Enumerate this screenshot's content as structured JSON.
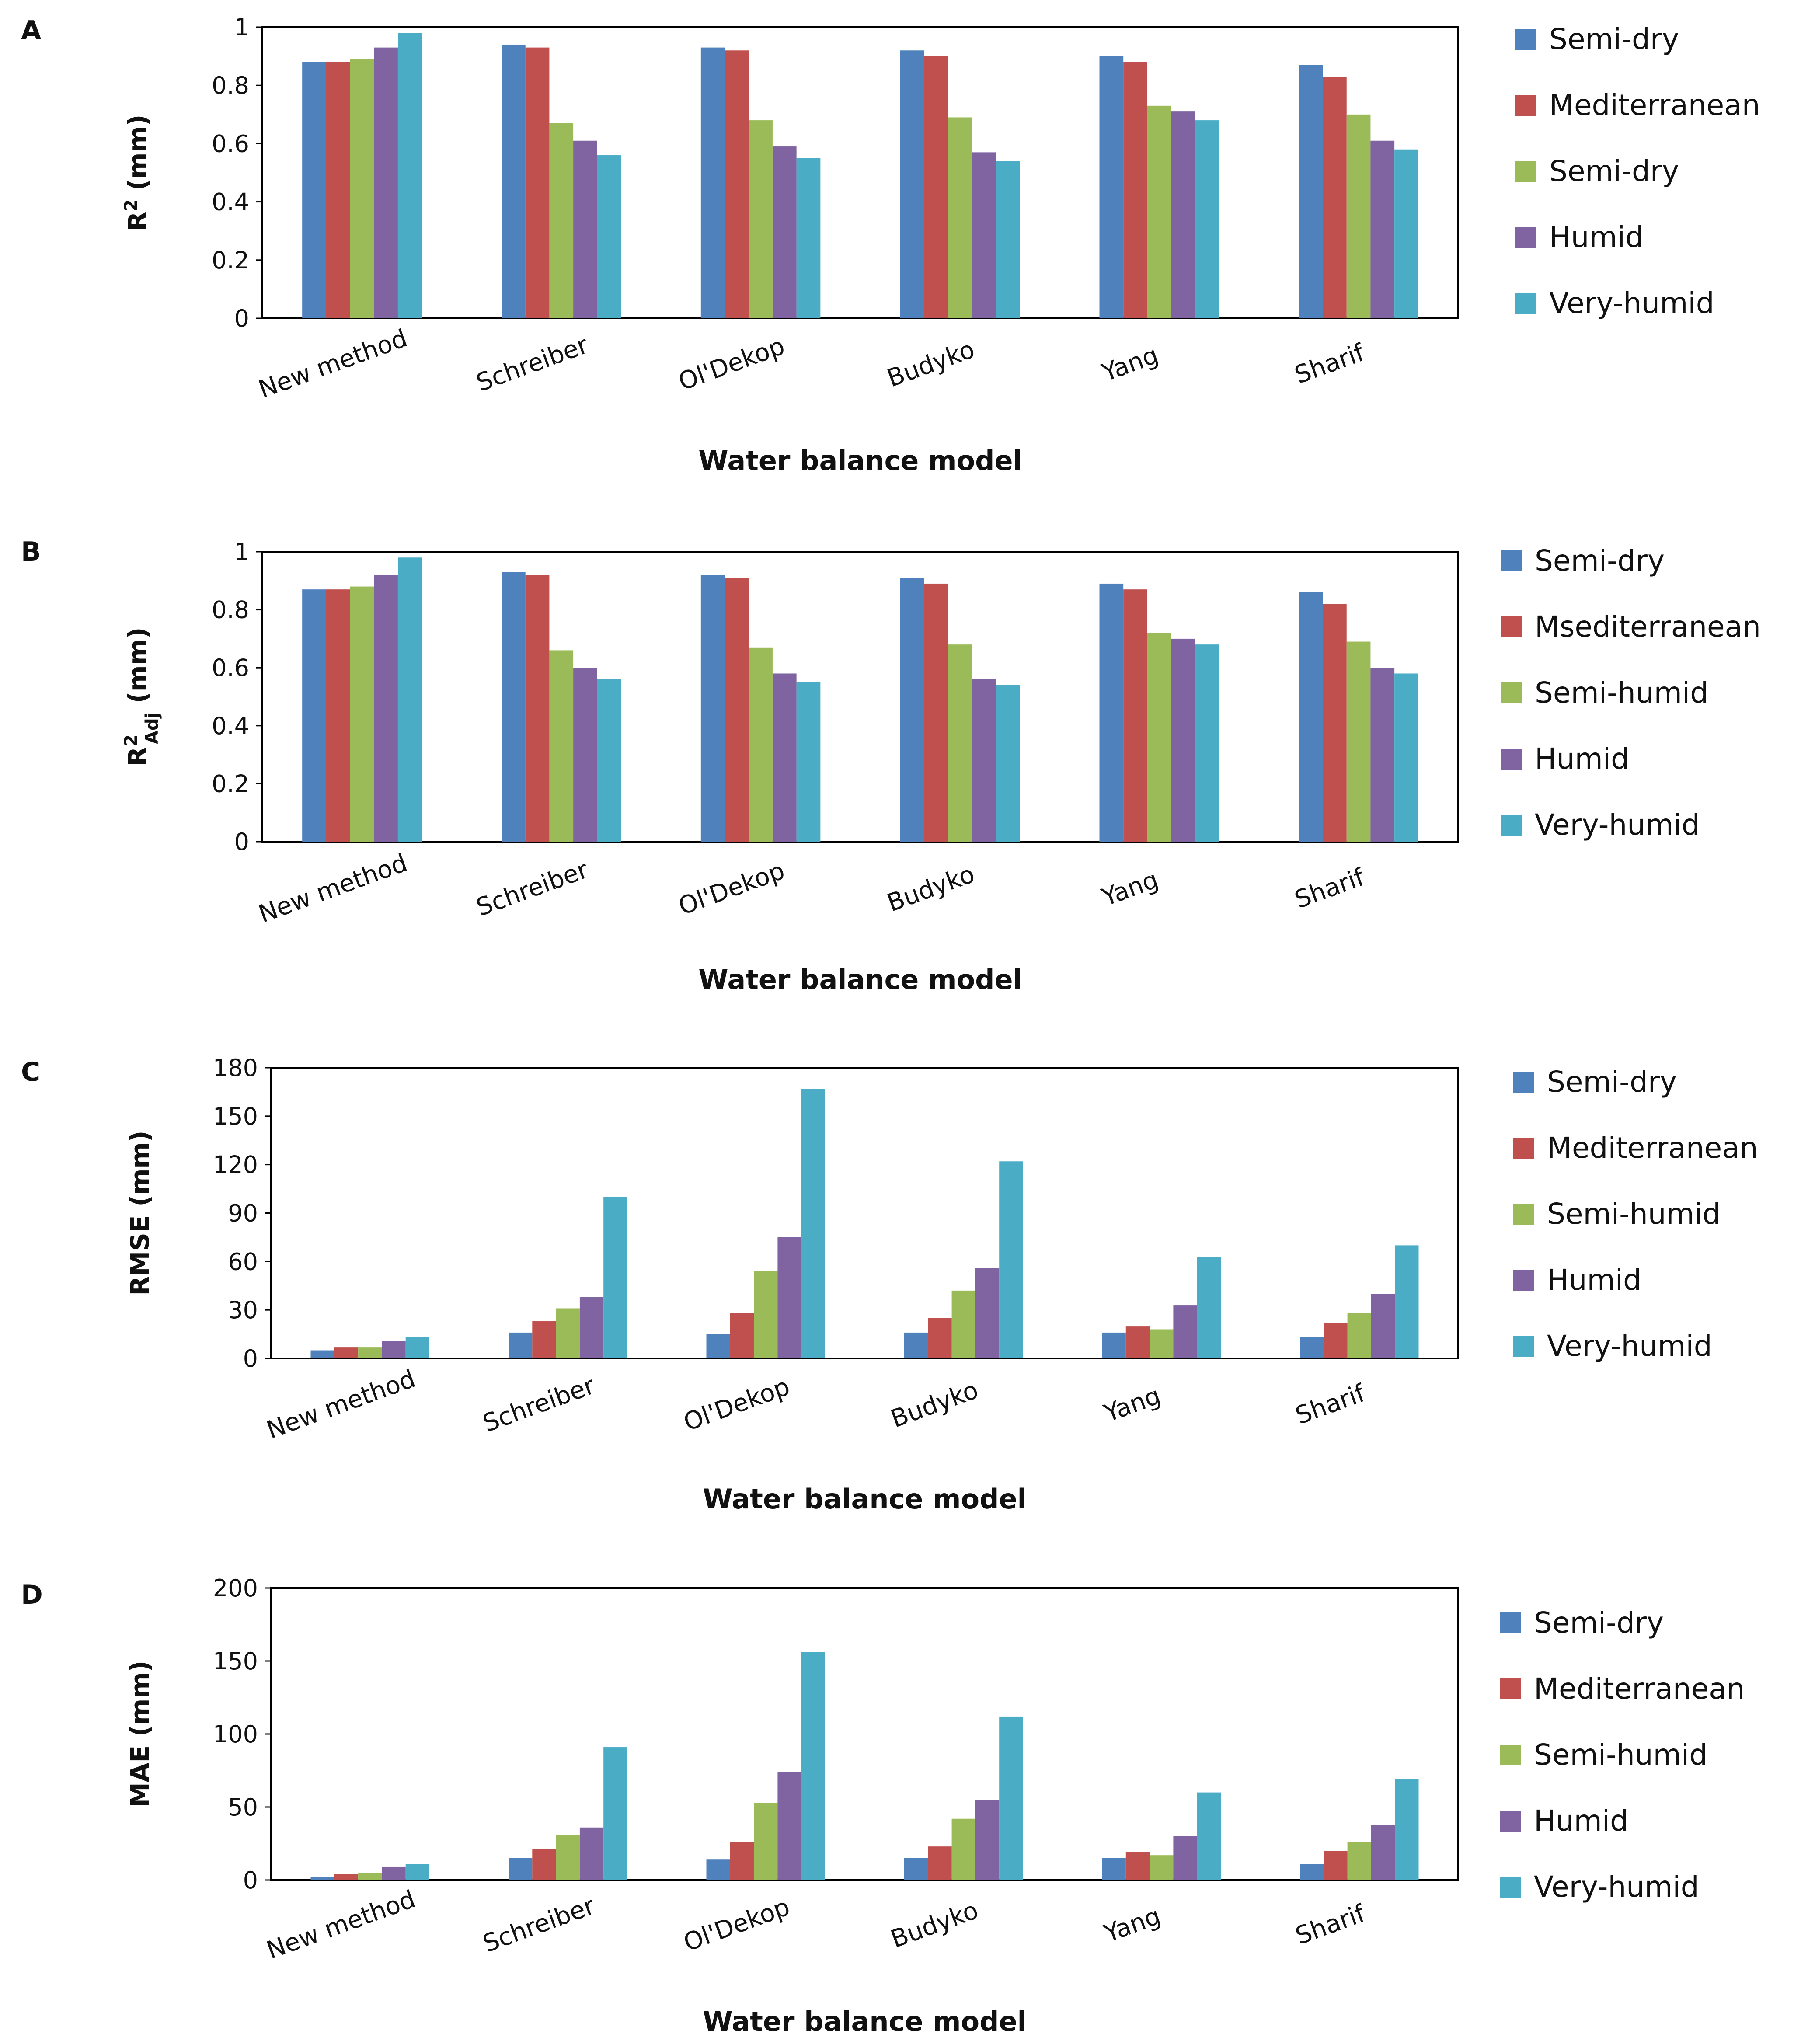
{
  "chart_data": [
    {
      "panel": "A",
      "type": "bar",
      "title": "",
      "xlabel": "Water balance model",
      "ylabel": "R",
      "ylabel_sup": "2",
      "ylabel_sub": "",
      "ylabel_unit": " (mm)",
      "ylim": [
        0,
        1
      ],
      "yticks": [
        "0",
        "0.2",
        "0.4",
        "0.6",
        "0.8",
        "1"
      ],
      "ytick_values": [
        0,
        0.2,
        0.4,
        0.6,
        0.8,
        1
      ],
      "categories": [
        "New method",
        "Schreiber",
        "Ol'Dekop",
        "Budyko",
        "Yang",
        "Sharif"
      ],
      "legend_position": "right",
      "series": [
        {
          "name": "Semi-dry",
          "color": "#4F81BD",
          "values": [
            0.88,
            0.94,
            0.93,
            0.92,
            0.9,
            0.87
          ]
        },
        {
          "name": "Mediterranean",
          "color": "#C0504D",
          "values": [
            0.88,
            0.93,
            0.92,
            0.9,
            0.88,
            0.83
          ]
        },
        {
          "name": "Semi-dry",
          "color": "#9BBB59",
          "values": [
            0.89,
            0.67,
            0.68,
            0.69,
            0.73,
            0.7
          ]
        },
        {
          "name": "Humid",
          "color": "#8064A2",
          "values": [
            0.93,
            0.61,
            0.59,
            0.57,
            0.71,
            0.61
          ]
        },
        {
          "name": "Very-humid",
          "color": "#4BACC6",
          "values": [
            0.98,
            0.56,
            0.55,
            0.54,
            0.68,
            0.58
          ]
        }
      ]
    },
    {
      "panel": "B",
      "type": "bar",
      "title": "",
      "xlabel": "Water balance model",
      "ylabel": "R",
      "ylabel_sup": "2",
      "ylabel_sub": "Adj",
      "ylabel_unit": " (mm)",
      "ylim": [
        0,
        1
      ],
      "yticks": [
        "0",
        "0.2",
        "0.4",
        "0.6",
        "0.8",
        "1"
      ],
      "ytick_values": [
        0,
        0.2,
        0.4,
        0.6,
        0.8,
        1
      ],
      "categories": [
        "New method",
        "Schreiber",
        "Ol'Dekop",
        "Budyko",
        "Yang",
        "Sharif"
      ],
      "legend_position": "right",
      "series": [
        {
          "name": "Semi-dry",
          "color": "#4F81BD",
          "values": [
            0.87,
            0.93,
            0.92,
            0.91,
            0.89,
            0.86
          ]
        },
        {
          "name": "Msediterranean",
          "color": "#C0504D",
          "values": [
            0.87,
            0.92,
            0.91,
            0.89,
            0.87,
            0.82
          ]
        },
        {
          "name": "Semi-humid",
          "color": "#9BBB59",
          "values": [
            0.88,
            0.66,
            0.67,
            0.68,
            0.72,
            0.69
          ]
        },
        {
          "name": "Humid",
          "color": "#8064A2",
          "values": [
            0.92,
            0.6,
            0.58,
            0.56,
            0.7,
            0.6
          ]
        },
        {
          "name": "Very-humid",
          "color": "#4BACC6",
          "values": [
            0.98,
            0.56,
            0.55,
            0.54,
            0.68,
            0.58
          ]
        }
      ]
    },
    {
      "panel": "C",
      "type": "bar",
      "title": "",
      "xlabel": "Water balance model",
      "ylabel": "RMSE (mm)",
      "ylabel_sup": "",
      "ylabel_sub": "",
      "ylabel_unit": "",
      "ylim": [
        0,
        180
      ],
      "yticks": [
        "0",
        "30",
        "60",
        "90",
        "120",
        "150",
        "180"
      ],
      "ytick_values": [
        0,
        30,
        60,
        90,
        120,
        150,
        180
      ],
      "categories": [
        "New method",
        "Schreiber",
        "Ol'Dekop",
        "Budyko",
        "Yang",
        "Sharif"
      ],
      "legend_position": "right",
      "series": [
        {
          "name": "Semi-dry",
          "color": "#4F81BD",
          "values": [
            5,
            16,
            15,
            16,
            16,
            13
          ]
        },
        {
          "name": "Mediterranean",
          "color": "#C0504D",
          "values": [
            7,
            23,
            28,
            25,
            20,
            22
          ]
        },
        {
          "name": "Semi-humid",
          "color": "#9BBB59",
          "values": [
            7,
            31,
            54,
            42,
            18,
            28
          ]
        },
        {
          "name": "Humid",
          "color": "#8064A2",
          "values": [
            11,
            38,
            75,
            56,
            33,
            40
          ]
        },
        {
          "name": "Very-humid",
          "color": "#4BACC6",
          "values": [
            13,
            100,
            167,
            122,
            63,
            70
          ]
        }
      ]
    },
    {
      "panel": "D",
      "type": "bar",
      "title": "",
      "xlabel": "Water balance model",
      "ylabel": "MAE (mm)",
      "ylabel_sup": "",
      "ylabel_sub": "",
      "ylabel_unit": "",
      "ylim": [
        0,
        200
      ],
      "yticks": [
        "0",
        "50",
        "100",
        "150",
        "200"
      ],
      "ytick_values": [
        0,
        50,
        100,
        150,
        200
      ],
      "categories": [
        "New method",
        "Schreiber",
        "Ol'Dekop",
        "Budyko",
        "Yang",
        "Sharif"
      ],
      "legend_position": "right",
      "series": [
        {
          "name": "Semi-dry",
          "color": "#4F81BD",
          "values": [
            2,
            15,
            14,
            15,
            15,
            11
          ]
        },
        {
          "name": "Mediterranean",
          "color": "#C0504D",
          "values": [
            4,
            21,
            26,
            23,
            19,
            20
          ]
        },
        {
          "name": "Semi-humid",
          "color": "#9BBB59",
          "values": [
            5,
            31,
            53,
            42,
            17,
            26
          ]
        },
        {
          "name": "Humid",
          "color": "#8064A2",
          "values": [
            9,
            36,
            74,
            55,
            30,
            38
          ]
        },
        {
          "name": "Very-humid",
          "color": "#4BACC6",
          "values": [
            11,
            91,
            156,
            112,
            60,
            69
          ]
        }
      ]
    }
  ]
}
